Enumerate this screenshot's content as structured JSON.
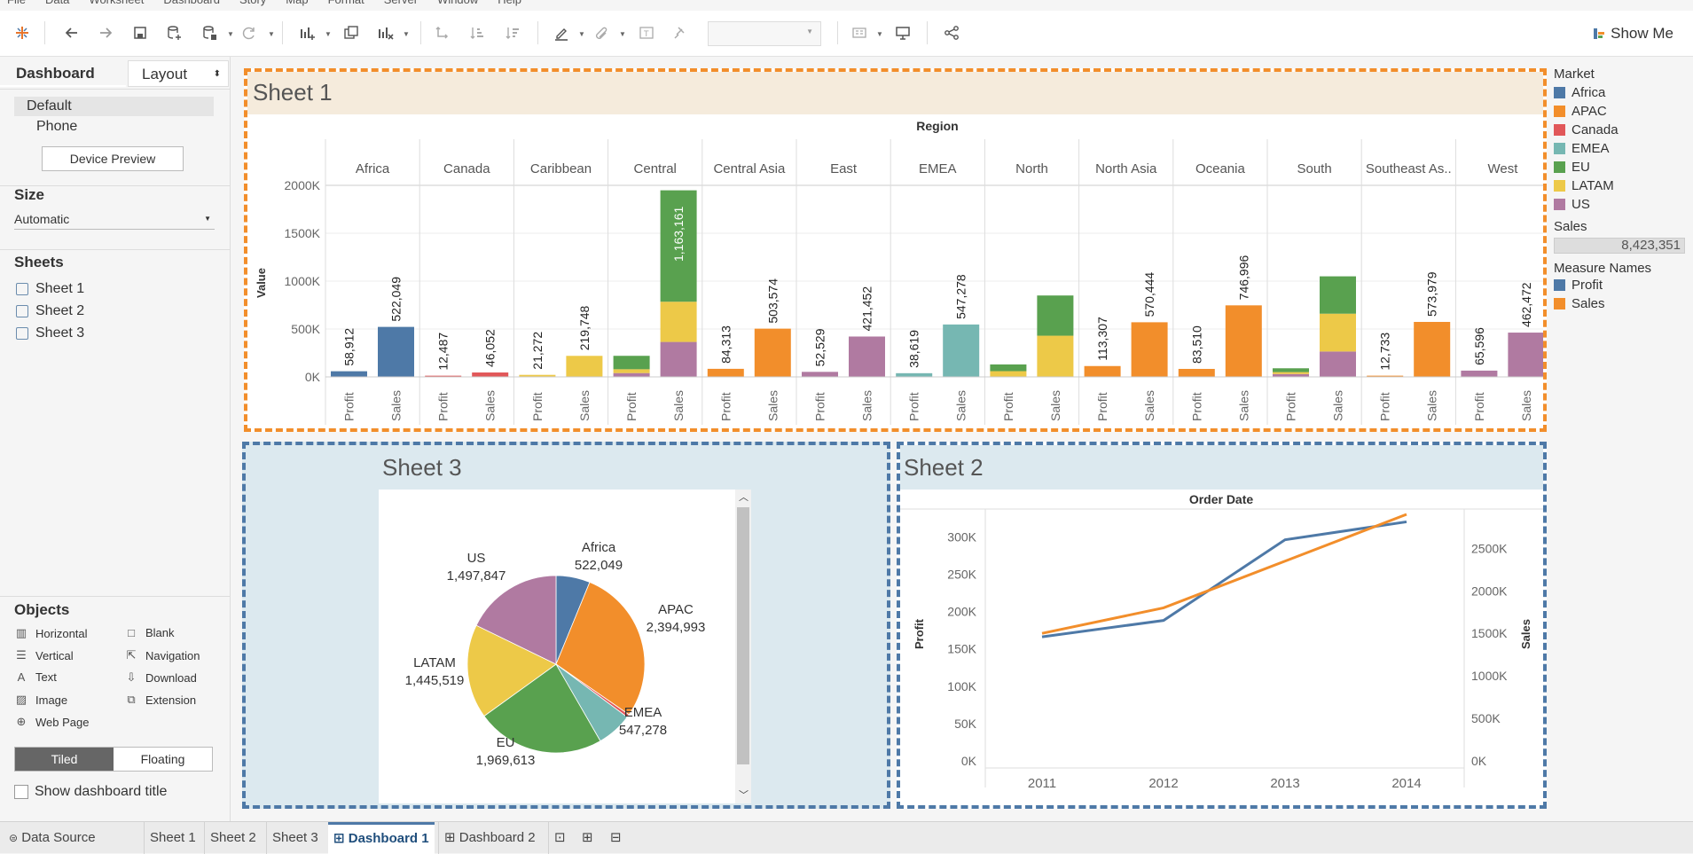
{
  "menu": [
    "File",
    "Data",
    "Worksheet",
    "Dashboard",
    "Story",
    "Map",
    "Format",
    "Server",
    "Window",
    "Help"
  ],
  "toolbar": {
    "show_me": "Show Me"
  },
  "left": {
    "tab_dashboard": "Dashboard",
    "tab_layout": "Layout",
    "devices": [
      "Default",
      "Phone"
    ],
    "device_preview": "Device Preview",
    "size_label": "Size",
    "size_value": "Automatic",
    "sheets_label": "Sheets",
    "sheets": [
      "Sheet 1",
      "Sheet 2",
      "Sheet 3"
    ],
    "objects_label": "Objects",
    "objects": [
      {
        "label": "Horizontal",
        "icon": "horizontal-icon"
      },
      {
        "label": "Blank",
        "icon": "blank-icon"
      },
      {
        "label": "Vertical",
        "icon": "vertical-icon"
      },
      {
        "label": "Navigation",
        "icon": "navigation-icon"
      },
      {
        "label": "Text",
        "icon": "text-icon"
      },
      {
        "label": "Download",
        "icon": "download-icon"
      },
      {
        "label": "Image",
        "icon": "image-icon"
      },
      {
        "label": "Extension",
        "icon": "extension-icon"
      },
      {
        "label": "Web Page",
        "icon": "web-page-icon"
      }
    ],
    "tiled": "Tiled",
    "floating": "Floating",
    "show_title": "Show dashboard title"
  },
  "colors": {
    "Africa": "#4e79a7",
    "APAC": "#f28e2b",
    "Canada": "#e15759",
    "EMEA": "#76b7b2",
    "EU": "#59a14f",
    "LATAM": "#edc948",
    "US": "#b07aa1"
  },
  "legend": {
    "market_title": "Market",
    "markets": [
      "Africa",
      "APAC",
      "Canada",
      "EMEA",
      "EU",
      "LATAM",
      "US"
    ],
    "sales_title": "Sales",
    "sales_value": "8,423,351",
    "measure_title": "Measure Names",
    "measures": [
      {
        "name": "Profit",
        "color": "#4e79a7"
      },
      {
        "name": "Sales",
        "color": "#f28e2b"
      }
    ]
  },
  "sheet1": {
    "title": "Sheet 1",
    "header": "Region",
    "y_title": "Value",
    "y_ticks": [
      "2000K",
      "1500K",
      "1000K",
      "500K",
      "0K"
    ]
  },
  "sheet2": {
    "title": "Sheet 2",
    "header": "Order Date",
    "y_left_title": "Profit",
    "y_right_title": "Sales"
  },
  "sheet3": {
    "title": "Sheet 3"
  },
  "bottom_tabs": [
    "Data Source",
    "Sheet 1",
    "Sheet 2",
    "Sheet 3",
    "Dashboard 1",
    "Dashboard 2"
  ],
  "chart_data": [
    {
      "type": "bar",
      "title": "Sheet 1",
      "header": "Region",
      "ylabel": "Value",
      "ylim": [
        0,
        2000000
      ],
      "yticks": [
        0,
        500000,
        1000000,
        1500000,
        2000000
      ],
      "categories": [
        "Africa",
        "Canada",
        "Caribbean",
        "Central",
        "Central Asia",
        "East",
        "EMEA",
        "North",
        "North Asia",
        "Oceania",
        "South",
        "Southeast As..",
        "West"
      ],
      "measures": [
        "Profit",
        "Sales"
      ],
      "bars": [
        {
          "region": "Africa",
          "profit_label": "58,912",
          "sales_label": "522,049",
          "profit": [
            {
              "m": "Africa",
              "v": 58912
            }
          ],
          "sales": [
            {
              "m": "Africa",
              "v": 522049
            }
          ]
        },
        {
          "region": "Canada",
          "profit_label": "12,487",
          "sales_label": "46,052",
          "profit": [
            {
              "m": "Canada",
              "v": 12487
            }
          ],
          "sales": [
            {
              "m": "Canada",
              "v": 46052
            }
          ]
        },
        {
          "region": "Caribbean",
          "profit_label": "21,272",
          "sales_label": "219,748",
          "profit": [
            {
              "m": "LATAM",
              "v": 21272
            }
          ],
          "sales": [
            {
              "m": "LATAM",
              "v": 219748
            }
          ]
        },
        {
          "region": "Central",
          "profit_label": "",
          "sales_label": "1,163,161",
          "profit": [
            {
              "m": "US",
              "v": 40000
            },
            {
              "m": "LATAM",
              "v": 40000
            },
            {
              "m": "EU",
              "v": 140000
            }
          ],
          "sales": [
            {
              "m": "US",
              "v": 365000
            },
            {
              "m": "LATAM",
              "v": 420000
            },
            {
              "m": "EU",
              "v": 1163161
            }
          ]
        },
        {
          "region": "Central Asia",
          "profit_label": "84,313",
          "sales_label": "503,574",
          "profit": [
            {
              "m": "APAC",
              "v": 84313
            }
          ],
          "sales": [
            {
              "m": "APAC",
              "v": 503574
            }
          ]
        },
        {
          "region": "East",
          "profit_label": "52,529",
          "sales_label": "421,452",
          "profit": [
            {
              "m": "US",
              "v": 52529
            }
          ],
          "sales": [
            {
              "m": "US",
              "v": 421452
            }
          ]
        },
        {
          "region": "EMEA",
          "profit_label": "38,619",
          "sales_label": "547,278",
          "profit": [
            {
              "m": "EMEA",
              "v": 38619
            }
          ],
          "sales": [
            {
              "m": "EMEA",
              "v": 547278
            }
          ]
        },
        {
          "region": "North",
          "profit_label": "",
          "sales_label": "",
          "profit": [
            {
              "m": "LATAM",
              "v": 60000
            },
            {
              "m": "EU",
              "v": 70000
            }
          ],
          "sales": [
            {
              "m": "LATAM",
              "v": 430000
            },
            {
              "m": "EU",
              "v": 420000
            }
          ]
        },
        {
          "region": "North Asia",
          "profit_label": "113,307",
          "sales_label": "570,444",
          "profit": [
            {
              "m": "APAC",
              "v": 113307
            }
          ],
          "sales": [
            {
              "m": "APAC",
              "v": 570444
            }
          ]
        },
        {
          "region": "Oceania",
          "profit_label": "83,510",
          "sales_label": "746,996",
          "profit": [
            {
              "m": "APAC",
              "v": 83510
            }
          ],
          "sales": [
            {
              "m": "APAC",
              "v": 746996
            }
          ]
        },
        {
          "region": "South",
          "profit_label": "",
          "sales_label": "",
          "profit": [
            {
              "m": "US",
              "v": 30000
            },
            {
              "m": "LATAM",
              "v": 20000
            },
            {
              "m": "EU",
              "v": 40000
            }
          ],
          "sales": [
            {
              "m": "US",
              "v": 265000
            },
            {
              "m": "LATAM",
              "v": 395000
            },
            {
              "m": "EU",
              "v": 390000
            }
          ]
        },
        {
          "region": "Southeast As..",
          "profit_label": "12,733",
          "sales_label": "573,979",
          "profit": [
            {
              "m": "APAC",
              "v": 12733
            }
          ],
          "sales": [
            {
              "m": "APAC",
              "v": 573979
            }
          ]
        },
        {
          "region": "West",
          "profit_label": "65,596",
          "sales_label": "462,472",
          "profit": [
            {
              "m": "US",
              "v": 65596
            }
          ],
          "sales": [
            {
              "m": "US",
              "v": 462472
            }
          ]
        }
      ]
    },
    {
      "type": "line",
      "title": "Sheet 2",
      "xlabel": "Order Date",
      "x": [
        "2011",
        "2012",
        "2013",
        "2014"
      ],
      "series": [
        {
          "name": "Profit",
          "axis": "left",
          "values": [
            166000,
            188000,
            296000,
            320000
          ]
        },
        {
          "name": "Sales",
          "axis": "right",
          "values": [
            1500000,
            1800000,
            2350000,
            2900000
          ]
        }
      ],
      "y_left": {
        "label": "Profit",
        "ticks": [
          "300K",
          "250K",
          "200K",
          "150K",
          "100K",
          "50K",
          "0K"
        ],
        "range": [
          0,
          330000
        ]
      },
      "y_right": {
        "label": "Sales",
        "ticks": [
          "2500K",
          "2000K",
          "1500K",
          "1000K",
          "500K",
          "0K"
        ],
        "range": [
          0,
          2900000
        ]
      }
    },
    {
      "type": "pie",
      "title": "Sheet 3",
      "slices": [
        {
          "label": "Africa",
          "value": 522049,
          "text": "522,049"
        },
        {
          "label": "APAC",
          "value": 2394993,
          "text": "2,394,993"
        },
        {
          "label": "Canada",
          "value": 46052,
          "text": ""
        },
        {
          "label": "EMEA",
          "value": 547278,
          "text": "547,278"
        },
        {
          "label": "EU",
          "value": 1969613,
          "text": "1,969,613"
        },
        {
          "label": "LATAM",
          "value": 1445519,
          "text": "1,445,519"
        },
        {
          "label": "US",
          "value": 1497847,
          "text": "1,497,847"
        }
      ]
    }
  ]
}
